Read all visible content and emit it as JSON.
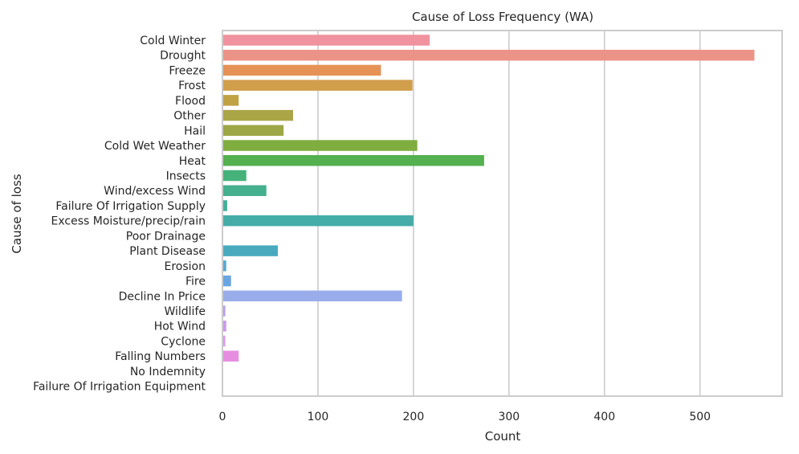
{
  "chart_data": {
    "type": "bar",
    "orientation": "horizontal",
    "title": "Cause of Loss Frequency (WA)",
    "xlabel": "Count",
    "ylabel": "Cause of loss",
    "xlim": [
      0,
      586
    ],
    "xticks": [
      0,
      100,
      200,
      300,
      400,
      500
    ],
    "grid": true,
    "categories": [
      "Cold Winter",
      "Drought",
      "Freeze",
      "Frost",
      "Flood",
      "Other",
      "Hail",
      "Cold Wet Weather",
      "Heat",
      "Insects",
      "Wind/excess Wind",
      "Failure Of Irrigation Supply",
      "Excess Moisture/precip/rain",
      "Poor Drainage",
      "Plant Disease",
      "Erosion",
      "Fire",
      "Decline In Price",
      "Wildlife",
      "Hot Wind",
      "Cyclone",
      "Falling Numbers",
      "No Indemnity",
      "Failure Of Irrigation Equipment"
    ],
    "values": [
      217,
      557,
      166,
      199,
      17,
      74,
      64,
      204,
      274,
      25,
      46,
      5,
      200,
      0,
      58,
      4,
      9,
      188,
      3,
      4,
      3,
      17,
      0,
      0
    ],
    "colors": [
      "#f0939f",
      "#ec9388",
      "#e69256",
      "#d19e4c",
      "#c0a244",
      "#aaa547",
      "#9da745",
      "#7fad3f",
      "#55b04f",
      "#45b27a",
      "#45b08e",
      "#45ae9c",
      "#45aca8",
      "#47abb4",
      "#4aaabd",
      "#58a9cf",
      "#6aa6e2",
      "#9aadeb",
      "#b79ded",
      "#c99aec",
      "#d99aea",
      "#e58ee0",
      "#ec8ecb",
      "#ee90b8"
    ]
  }
}
